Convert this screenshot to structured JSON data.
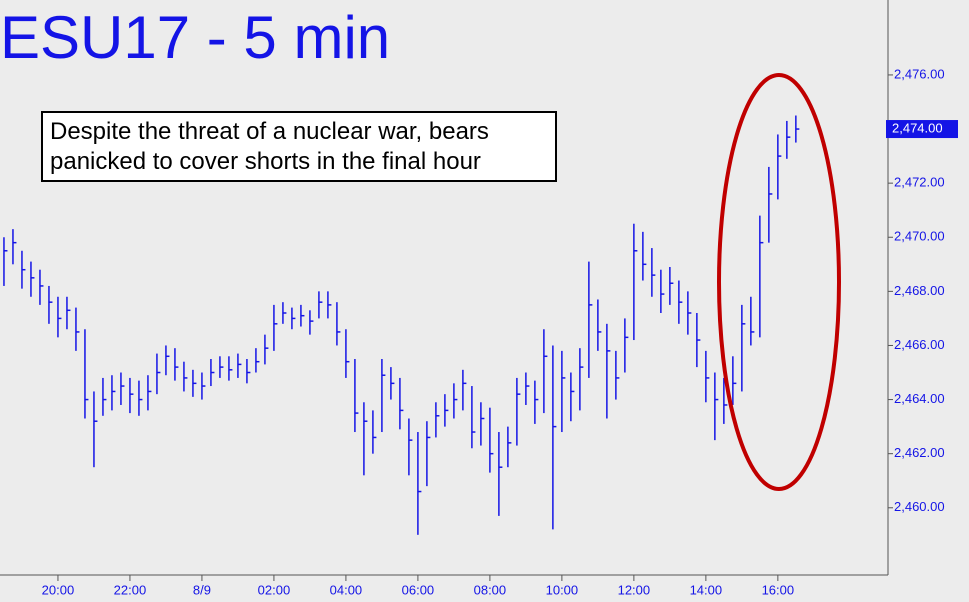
{
  "chart_data": {
    "type": "ohlc",
    "title": "ESU17 - 5 min",
    "annotation": [
      "Despite the threat of a nuclear war, bears",
      "panicked to cover shorts in the final hour"
    ],
    "color": "#1414e6",
    "highlight_color": "#c00000",
    "x": [
      18.5,
      18.75,
      19.0,
      19.25,
      19.5,
      19.75,
      20.0,
      20.25,
      20.5,
      20.75,
      21.0,
      21.25,
      21.5,
      21.75,
      22.0,
      22.25,
      22.5,
      22.75,
      23.0,
      23.25,
      23.5,
      23.75,
      24.0,
      24.25,
      24.5,
      24.75,
      25.0,
      25.25,
      25.5,
      25.75,
      26.0,
      26.25,
      26.5,
      26.75,
      27.0,
      27.25,
      27.5,
      27.75,
      28.0,
      28.25,
      28.5,
      28.75,
      29.0,
      29.25,
      29.5,
      29.75,
      30.0,
      30.25,
      30.5,
      30.75,
      31.0,
      31.25,
      31.5,
      31.75,
      32.0,
      32.25,
      32.5,
      32.75,
      33.0,
      33.25,
      33.5,
      33.75,
      34.0,
      34.25,
      34.5,
      34.75,
      35.0,
      35.25,
      35.5,
      35.75,
      36.0,
      36.25,
      36.5,
      36.75,
      37.0,
      37.25,
      37.5,
      37.75,
      38.0,
      38.25,
      38.5,
      38.75,
      39.0,
      39.25,
      39.5,
      39.75,
      40.0,
      40.25,
      40.5
    ],
    "high": [
      2470.0,
      2470.3,
      2469.5,
      2469.1,
      2468.8,
      2468.2,
      2467.8,
      2467.8,
      2467.4,
      2466.6,
      2464.3,
      2464.8,
      2464.9,
      2465.0,
      2464.8,
      2464.7,
      2464.9,
      2465.7,
      2466.0,
      2465.9,
      2465.4,
      2465.1,
      2465.0,
      2465.5,
      2465.6,
      2465.6,
      2465.7,
      2465.5,
      2465.9,
      2466.4,
      2467.5,
      2467.6,
      2467.4,
      2467.5,
      2467.3,
      2468.0,
      2468.0,
      2467.6,
      2466.6,
      2465.5,
      2463.9,
      2463.6,
      2465.5,
      2465.2,
      2464.8,
      2463.3,
      2462.8,
      2463.2,
      2463.9,
      2464.2,
      2464.6,
      2465.1,
      2464.5,
      2463.9,
      2463.7,
      2462.8,
      2463.0,
      2464.8,
      2465.0,
      2464.7,
      2466.6,
      2466.0,
      2465.8,
      2465.0,
      2465.9,
      2469.1,
      2467.7,
      2466.8,
      2465.8,
      2467.0,
      2470.5,
      2470.2,
      2469.6,
      2468.8,
      2468.9,
      2468.4,
      2468.0,
      2467.2,
      2465.8,
      2465.0,
      2464.8,
      2465.6,
      2467.5,
      2467.8,
      2470.8,
      2472.6,
      2473.8,
      2474.3,
      2474.5
    ],
    "low": [
      2468.2,
      2469.0,
      2468.1,
      2467.8,
      2467.5,
      2466.8,
      2466.3,
      2466.6,
      2465.8,
      2463.3,
      2461.5,
      2463.4,
      2463.6,
      2463.8,
      2463.5,
      2463.4,
      2463.6,
      2464.2,
      2464.9,
      2464.7,
      2464.3,
      2464.1,
      2464.0,
      2464.5,
      2464.8,
      2464.7,
      2464.8,
      2464.6,
      2465.0,
      2465.3,
      2465.8,
      2466.8,
      2466.6,
      2466.7,
      2466.4,
      2467.0,
      2467.0,
      2466.0,
      2464.8,
      2462.8,
      2461.2,
      2462.0,
      2462.8,
      2464.0,
      2462.9,
      2461.2,
      2459.0,
      2460.8,
      2462.6,
      2463.0,
      2463.3,
      2463.6,
      2462.2,
      2462.3,
      2461.3,
      2459.7,
      2461.5,
      2462.3,
      2463.8,
      2463.1,
      2463.5,
      2459.2,
      2462.8,
      2463.2,
      2463.6,
      2464.8,
      2465.8,
      2463.3,
      2464.0,
      2465.0,
      2466.2,
      2468.4,
      2467.8,
      2467.2,
      2467.5,
      2466.8,
      2466.4,
      2465.2,
      2463.9,
      2462.5,
      2463.1,
      2463.8,
      2464.3,
      2466.0,
      2466.3,
      2469.8,
      2471.4,
      2472.9,
      2473.5
    ],
    "close": [
      2469.5,
      2469.8,
      2468.8,
      2468.5,
      2468.2,
      2467.6,
      2467.0,
      2467.3,
      2466.5,
      2464.0,
      2463.2,
      2464.0,
      2464.3,
      2464.5,
      2464.2,
      2464.0,
      2464.3,
      2465.0,
      2465.6,
      2465.2,
      2464.8,
      2464.6,
      2464.5,
      2465.0,
      2465.2,
      2465.1,
      2465.3,
      2465.0,
      2465.4,
      2465.9,
      2466.8,
      2467.2,
      2467.0,
      2467.1,
      2466.9,
      2467.6,
      2467.5,
      2466.5,
      2465.4,
      2463.5,
      2463.2,
      2462.6,
      2464.9,
      2464.6,
      2463.6,
      2462.5,
      2460.6,
      2462.6,
      2463.4,
      2463.6,
      2464.0,
      2464.6,
      2462.8,
      2463.3,
      2462.0,
      2461.5,
      2462.4,
      2464.2,
      2464.5,
      2464.0,
      2465.6,
      2463.0,
      2464.8,
      2464.3,
      2465.2,
      2467.5,
      2466.5,
      2465.8,
      2464.8,
      2466.3,
      2469.5,
      2469.0,
      2468.6,
      2467.9,
      2468.3,
      2467.6,
      2467.2,
      2466.2,
      2464.8,
      2464.0,
      2463.8,
      2464.6,
      2466.8,
      2466.5,
      2469.8,
      2471.6,
      2473.0,
      2473.7,
      2474.0
    ],
    "last_label": {
      "value": 2474,
      "label": "2,474.00"
    },
    "xlim": [
      18.39,
      43.06
    ],
    "ylim": [
      2457.7,
      2478.77
    ],
    "xticks": [
      {
        "value": 20,
        "label": "20:00"
      },
      {
        "value": 22,
        "label": "22:00"
      },
      {
        "value": 24,
        "label": "8/9"
      },
      {
        "value": 26,
        "label": "02:00"
      },
      {
        "value": 28,
        "label": "04:00"
      },
      {
        "value": 30,
        "label": "06:00"
      },
      {
        "value": 32,
        "label": "08:00"
      },
      {
        "value": 34,
        "label": "10:00"
      },
      {
        "value": 36,
        "label": "12:00"
      },
      {
        "value": 38,
        "label": "14:00"
      },
      {
        "value": 40,
        "label": "16:00"
      }
    ],
    "yticks": [
      {
        "value": 2460,
        "label": "2,460.00"
      },
      {
        "value": 2462,
        "label": "2,462.00"
      },
      {
        "value": 2464,
        "label": "2,464.00"
      },
      {
        "value": 2466,
        "label": "2,466.00"
      },
      {
        "value": 2468,
        "label": "2,468.00"
      },
      {
        "value": 2470,
        "label": "2,470.00"
      },
      {
        "value": 2472,
        "label": "2,472.00"
      },
      {
        "value": 2474,
        "label": "2,474.00"
      },
      {
        "value": 2476,
        "label": "2,476.00"
      }
    ]
  }
}
